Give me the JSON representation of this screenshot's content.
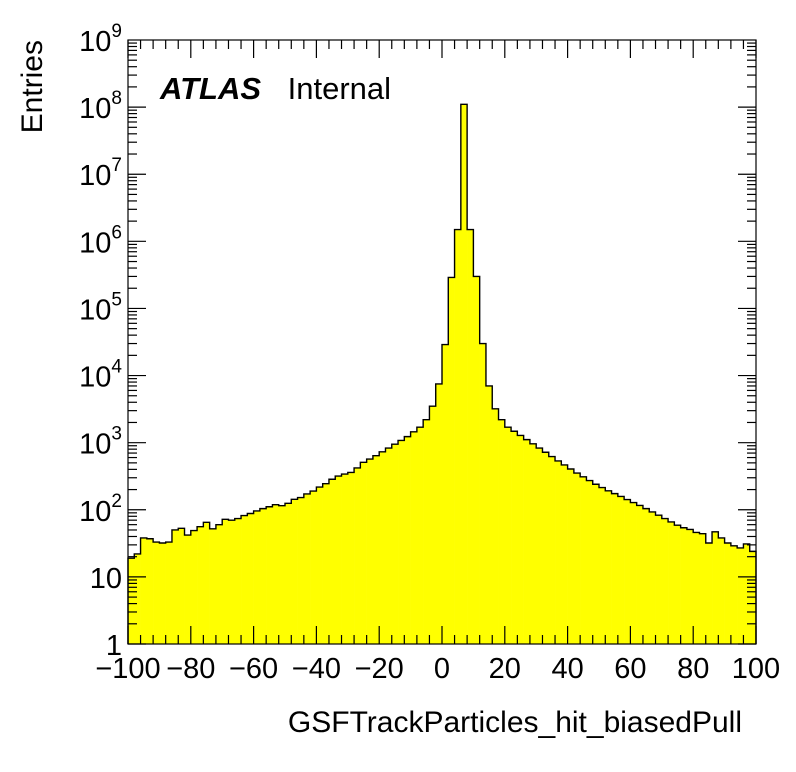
{
  "chart_data": {
    "type": "histogram",
    "title": "",
    "xlabel": "GSFTrackParticles_hit_biasedPull",
    "ylabel": "Entries",
    "xlim": [
      -100,
      100
    ],
    "ylim": [
      1,
      1000000000
    ],
    "yscale": "log",
    "grid": false,
    "legend": "none",
    "fill_color": "#ffff00",
    "edge_color": "#000000",
    "bin_width": 2,
    "annotation": {
      "bold": "ATLAS",
      "normal": "Internal"
    },
    "x_ticks": [
      -100,
      -80,
      -60,
      -40,
      -20,
      0,
      20,
      40,
      60,
      80,
      100
    ],
    "x_tick_labels": [
      "−100",
      "−80",
      "−60",
      "−40",
      "−20",
      "0",
      "20",
      "40",
      "60",
      "80",
      "100"
    ],
    "y_ticks": [
      1,
      10,
      100,
      1000,
      10000,
      100000,
      1000000,
      10000000,
      100000000,
      1000000000
    ],
    "y_tick_labels": [
      {
        "base": "1",
        "exp": ""
      },
      {
        "base": "10",
        "exp": ""
      },
      {
        "base": "10",
        "exp": "2"
      },
      {
        "base": "10",
        "exp": "3"
      },
      {
        "base": "10",
        "exp": "4"
      },
      {
        "base": "10",
        "exp": "5"
      },
      {
        "base": "10",
        "exp": "6"
      },
      {
        "base": "10",
        "exp": "7"
      },
      {
        "base": "10",
        "exp": "8"
      },
      {
        "base": "10",
        "exp": "9"
      }
    ],
    "bin_edges_start": -100,
    "values": [
      19,
      22,
      38,
      37,
      33,
      32,
      33,
      50,
      53,
      42,
      49,
      56,
      65,
      52,
      60,
      72,
      70,
      74,
      82,
      88,
      96,
      104,
      111,
      119,
      115,
      125,
      143,
      152,
      172,
      190,
      218,
      245,
      285,
      318,
      340,
      360,
      420,
      510,
      570,
      640,
      730,
      830,
      950,
      1080,
      1230,
      1450,
      1700,
      2200,
      3500,
      7500,
      29000,
      290000,
      1500000,
      110000000,
      1500000,
      300000,
      30000,
      7000,
      3200,
      2200,
      1700,
      1480,
      1280,
      1110,
      960,
      830,
      720,
      620,
      535,
      465,
      405,
      352,
      310,
      272,
      240,
      214,
      192,
      174,
      158,
      142,
      128,
      116,
      104,
      93,
      83,
      74,
      66,
      59,
      54,
      51,
      46,
      44,
      32,
      47,
      38,
      32,
      29,
      27,
      31,
      24
    ]
  }
}
